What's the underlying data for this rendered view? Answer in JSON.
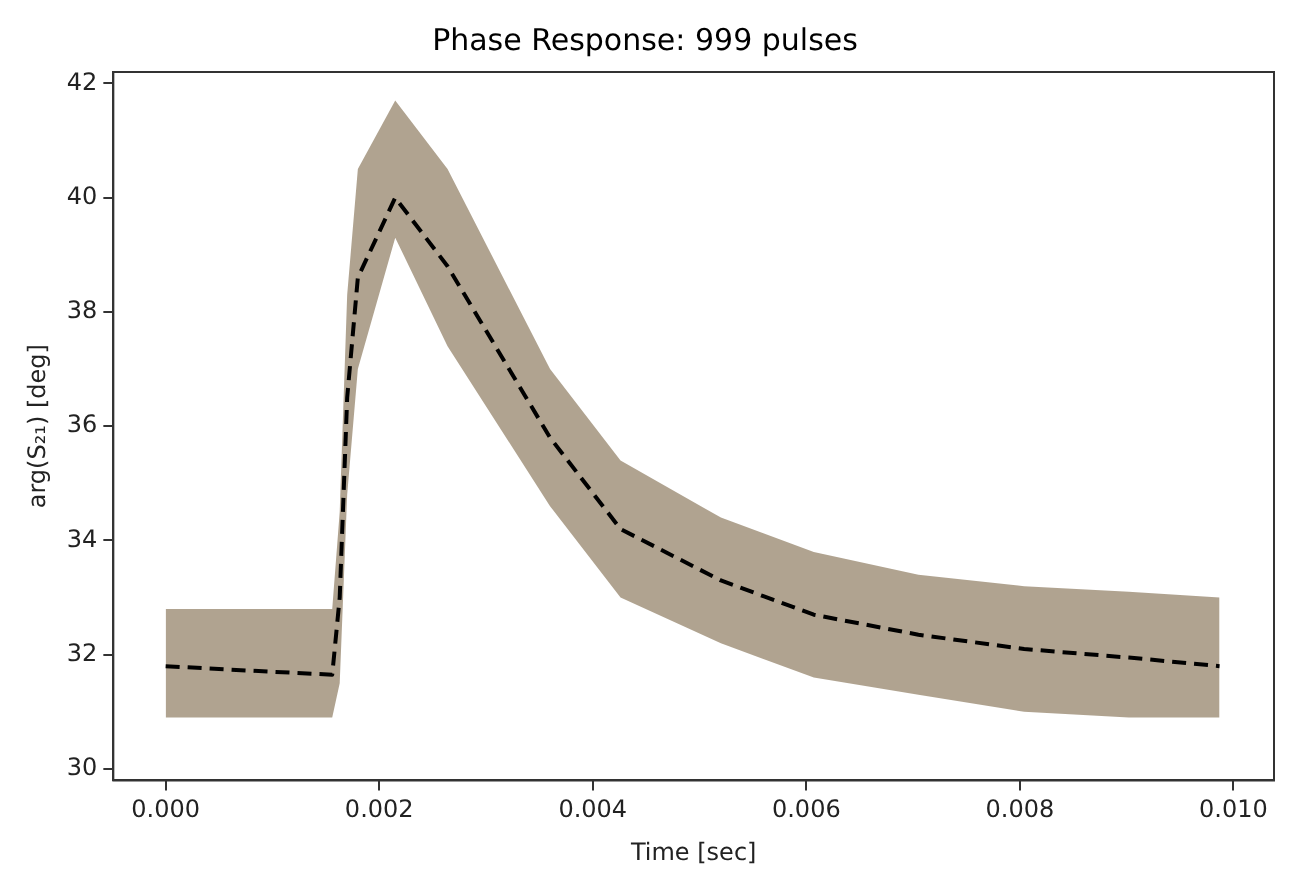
{
  "chart_data": {
    "type": "line",
    "title": "Phase Response: 999 pulses",
    "xlabel": "Time [sec]",
    "ylabel": "arg(S₂₁) [deg]",
    "x": [
      0,
      0.0008,
      0.00156,
      0.00163,
      0.0017,
      0.0018,
      0.00215,
      0.00264,
      0.0036,
      0.00426,
      0.0052,
      0.00607,
      0.00705,
      0.00804,
      0.00902,
      0.00987
    ],
    "series": [
      {
        "color": "#000000",
        "line_style": "dashed",
        "values": [
          31.8,
          31.72,
          31.65,
          33.0,
          36.5,
          38.6,
          40.0,
          38.8,
          35.8,
          34.2,
          33.3,
          32.7,
          32.35,
          32.1,
          31.95,
          31.8
        ],
        "upper": [
          32.8,
          32.8,
          32.8,
          34.5,
          38.3,
          40.5,
          41.7,
          40.5,
          37.0,
          35.4,
          34.4,
          33.8,
          33.4,
          33.2,
          33.1,
          33.0
        ],
        "lower": [
          30.9,
          30.9,
          30.9,
          31.5,
          34.8,
          37.0,
          39.3,
          37.4,
          34.6,
          33.0,
          32.2,
          31.6,
          31.3,
          31.0,
          30.9,
          30.9
        ]
      }
    ],
    "xlim": [
      -0.00049,
      0.01038
    ],
    "ylim": [
      29.8,
      42.2
    ],
    "xticks": [
      {
        "value": 0,
        "label": "0.000"
      },
      {
        "value": 0.002,
        "label": "0.002"
      },
      {
        "value": 0.004,
        "label": "0.004"
      },
      {
        "value": 0.006,
        "label": "0.006"
      },
      {
        "value": 0.008,
        "label": "0.008"
      },
      {
        "value": 0.01,
        "label": "0.010"
      }
    ],
    "yticks": [
      30,
      32,
      34,
      36,
      38,
      40,
      42
    ],
    "grid": false,
    "legend": false,
    "marker": "none"
  }
}
